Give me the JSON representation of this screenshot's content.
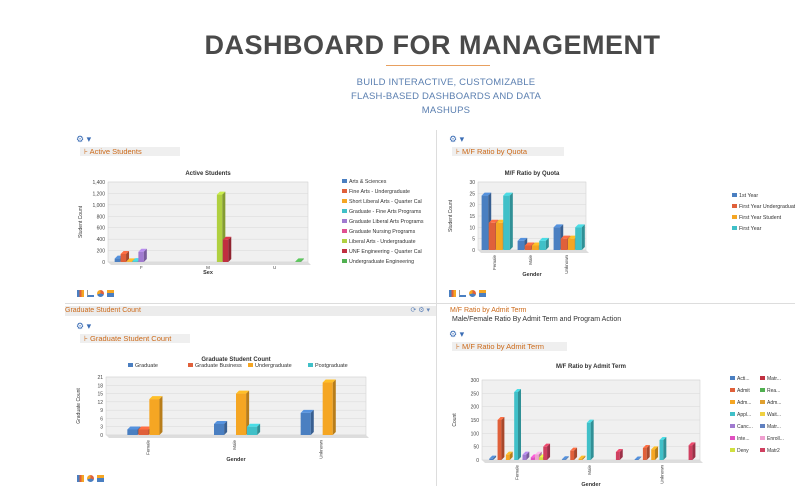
{
  "hero": {
    "title": "DASHBOARD FOR MANAGEMENT",
    "subtitle_lines": [
      "BUILD INTERACTIVE, CUSTOMIZABLE",
      "FLASH-BASED DASHBOARDS AND DATA",
      "MASHUPS"
    ]
  },
  "panels": {
    "p1_tab": "Active Students",
    "p2_tab": "M/F Ratio by Quota",
    "p3_header": "Graduate Student Count",
    "p3_tab": "Graduate Student Count",
    "p4_header": "M/F Ratio by Admit Term",
    "p4_caption": "Male/Female Ratio By Admit Term and Program Action",
    "p4_tab": "M/F Ratio by Admit Term",
    "p3_controls": "⟳  ⚙ ▾"
  },
  "chart_data": [
    {
      "type": "bar",
      "title": "Active Students",
      "xlabel": "Sex",
      "ylabel": "Student Count",
      "categories": [
        "F",
        "M",
        "U"
      ],
      "ylim": [
        0,
        1400
      ],
      "yticks": [
        "0",
        "200",
        "400",
        "600",
        "800",
        "1,000",
        "1,200",
        "1,400"
      ],
      "series": [
        {
          "name": "Arts & Sciences",
          "color": "#4a7fc1",
          "values": [
            60,
            0,
            0
          ]
        },
        {
          "name": "Fine Arts - Undergraduate",
          "color": "#e0603a",
          "values": [
            140,
            0,
            0
          ]
        },
        {
          "name": "Short Liberal Arts - Quarter Cal",
          "color": "#f5a623",
          "values": [
            10,
            0,
            0
          ]
        },
        {
          "name": "Graduate - Fine Arts Programs",
          "color": "#40c0c8",
          "values": [
            15,
            0,
            0
          ]
        },
        {
          "name": "Graduate Liberal Arts Programs",
          "color": "#a07ad0",
          "values": [
            180,
            0,
            0
          ]
        },
        {
          "name": "Graduate Nursing Programs",
          "color": "#e05090",
          "values": [
            0,
            0,
            0
          ]
        },
        {
          "name": "Liberal Arts - Undergraduate",
          "color": "#b0d040",
          "values": [
            0,
            1180,
            0
          ]
        },
        {
          "name": "UNF Engineering - Quarter Cal",
          "color": "#c03040",
          "values": [
            0,
            390,
            0
          ]
        },
        {
          "name": "Undergraduate Engineering",
          "color": "#50b050",
          "values": [
            0,
            0,
            10
          ]
        }
      ]
    },
    {
      "type": "bar",
      "title": "M/F Ratio by Quota",
      "xlabel": "Gender",
      "ylabel": "Student Count",
      "categories": [
        "Female",
        "Male",
        "Unknown"
      ],
      "ylim": [
        0,
        30
      ],
      "yticks": [
        "0",
        "5",
        "10",
        "15",
        "20",
        "25",
        "30"
      ],
      "series": [
        {
          "name": "1st Year",
          "color": "#4a7fc1",
          "values": [
            24,
            4,
            10
          ]
        },
        {
          "name": "First Year Undergraduate",
          "color": "#e0603a",
          "values": [
            12,
            2,
            5
          ]
        },
        {
          "name": "First Year Student",
          "color": "#f5a623",
          "values": [
            12,
            2,
            5
          ]
        },
        {
          "name": "First Year",
          "color": "#40c0c8",
          "values": [
            24,
            4,
            10
          ]
        }
      ]
    },
    {
      "type": "bar",
      "title": "Graduate Student Count",
      "xlabel": "Gender",
      "ylabel": "Graduate Count",
      "categories": [
        "Female",
        "Male",
        "Unknown"
      ],
      "ylim": [
        0,
        21
      ],
      "yticks": [
        "0",
        "3",
        "6",
        "9",
        "12",
        "15",
        "18",
        "21"
      ],
      "series": [
        {
          "name": "Graduate",
          "color": "#4a7fc1",
          "values": [
            2,
            4,
            8
          ]
        },
        {
          "name": "Graduate Business",
          "color": "#e0603a",
          "values": [
            2,
            0,
            0
          ]
        },
        {
          "name": "Undergraduate",
          "color": "#f5a623",
          "values": [
            13,
            15,
            19
          ]
        },
        {
          "name": "Postgraduate",
          "color": "#40c0c8",
          "values": [
            0,
            3,
            0
          ]
        }
      ]
    },
    {
      "type": "bar",
      "title": "M/F Ratio by Admit Term",
      "xlabel": "Gender",
      "ylabel": "Count",
      "categories": [
        "Female",
        "Male",
        "Unknown"
      ],
      "ylim": [
        0,
        300
      ],
      "yticks": [
        "0",
        "50",
        "100",
        "150",
        "200",
        "250",
        "300"
      ],
      "series": [
        {
          "name": "Acti...",
          "color": "#4a7fc1",
          "values": [
            5,
            3,
            2
          ]
        },
        {
          "name": "Matr...",
          "color": "#c03040",
          "values": [
            0,
            0,
            0
          ]
        },
        {
          "name": "Admit",
          "color": "#e0603a",
          "values": [
            150,
            35,
            45
          ]
        },
        {
          "name": "Rea...",
          "color": "#50b050",
          "values": [
            0,
            0,
            0
          ]
        },
        {
          "name": "Adm...",
          "color": "#f5a623",
          "values": [
            20,
            5,
            40
          ]
        },
        {
          "name": "Adm...",
          "color": "#e0a030",
          "values": [
            0,
            0,
            0
          ]
        },
        {
          "name": "Appl...",
          "color": "#40c0c8",
          "values": [
            255,
            140,
            75
          ]
        },
        {
          "name": "Wait...",
          "color": "#f0d040",
          "values": [
            0,
            0,
            0
          ]
        },
        {
          "name": "Canc...",
          "color": "#a07ad0",
          "values": [
            20,
            0,
            0
          ]
        },
        {
          "name": "Matr...",
          "color": "#6080c0",
          "values": [
            0,
            0,
            0
          ]
        },
        {
          "name": "Inte...",
          "color": "#e050c0",
          "values": [
            10,
            0,
            0
          ]
        },
        {
          "name": "Enroll...",
          "color": "#f0a0d0",
          "values": [
            20,
            0,
            0
          ]
        },
        {
          "name": "Deny",
          "color": "#d0e040",
          "values": [
            10,
            0,
            0
          ]
        },
        {
          "name": "Matr2",
          "color": "#d04060",
          "values": [
            50,
            30,
            55
          ]
        }
      ]
    }
  ]
}
